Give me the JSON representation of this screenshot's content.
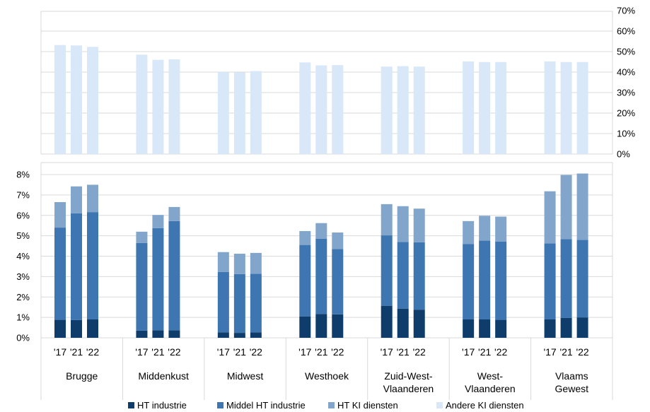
{
  "chart_data": [
    {
      "type": "bar",
      "stacked": false,
      "panel": "top",
      "y_axis_position": "right",
      "ylim": [
        0,
        70
      ],
      "yticks": [
        "0%",
        "10%",
        "20%",
        "30%",
        "40%",
        "50%",
        "60%",
        "70%"
      ],
      "grid": true,
      "regions": [
        "Brugge",
        "Middenkust",
        "Midwest",
        "Westhoek",
        "Zuid-West-Vlaanderen",
        "West-Vlaanderen",
        "Vlaams Gewest"
      ],
      "years": [
        "'17",
        "'21",
        "'22"
      ],
      "series": [
        {
          "name": "Andere KI diensten",
          "color": "#d9e8f8",
          "values": [
            [
              53.2,
              53.0,
              52.3
            ],
            [
              48.5,
              46.0,
              46.2
            ],
            [
              40.0,
              39.8,
              40.5
            ],
            [
              44.7,
              43.3,
              43.4
            ],
            [
              42.7,
              42.9,
              42.7
            ],
            [
              45.2,
              44.9,
              44.9
            ],
            [
              45.2,
              44.9,
              44.9
            ]
          ]
        }
      ]
    },
    {
      "type": "bar",
      "stacked": true,
      "panel": "bottom",
      "y_axis_position": "left",
      "ylim": [
        0,
        8
      ],
      "yticks": [
        "0%",
        "1%",
        "2%",
        "3%",
        "4%",
        "5%",
        "6%",
        "7%",
        "8%"
      ],
      "grid": true,
      "regions": [
        "Brugge",
        "Middenkust",
        "Midwest",
        "Westhoek",
        "Zuid-West-Vlaanderen",
        "West-Vlaanderen",
        "Vlaams Gewest"
      ],
      "years": [
        "'17",
        "'21",
        "'22"
      ],
      "series": [
        {
          "name": "HT industrie",
          "color": "#0e3d6b",
          "values": [
            [
              0.88,
              0.87,
              0.9
            ],
            [
              0.35,
              0.37,
              0.37
            ],
            [
              0.27,
              0.24,
              0.27
            ],
            [
              1.05,
              1.17,
              1.15
            ],
            [
              1.57,
              1.43,
              1.38
            ],
            [
              0.9,
              0.9,
              0.88
            ],
            [
              0.9,
              0.98,
              1.0
            ]
          ]
        },
        {
          "name": "Middel HT industrie",
          "color": "#3e76b2",
          "values": [
            [
              4.52,
              5.23,
              5.26
            ],
            [
              4.3,
              5.0,
              5.35
            ],
            [
              2.96,
              2.88,
              2.87
            ],
            [
              3.5,
              3.68,
              3.2
            ],
            [
              3.45,
              3.27,
              3.3
            ],
            [
              3.7,
              3.86,
              3.84
            ],
            [
              3.73,
              3.85,
              3.8
            ]
          ]
        },
        {
          "name": "HT KI diensten",
          "color": "#82a5cc",
          "values": [
            [
              1.25,
              1.32,
              1.34
            ],
            [
              0.55,
              0.65,
              0.69
            ],
            [
              0.97,
              1.0,
              1.02
            ],
            [
              0.68,
              0.77,
              0.81
            ],
            [
              1.53,
              1.75,
              1.65
            ],
            [
              1.12,
              1.22,
              1.22
            ],
            [
              2.55,
              3.15,
              3.25
            ]
          ]
        }
      ]
    }
  ],
  "category_labels": [
    [
      "Brugge"
    ],
    [
      "Middenkust"
    ],
    [
      "Midwest"
    ],
    [
      "Westhoek"
    ],
    [
      "Zuid-West-",
      "Vlaanderen"
    ],
    [
      "West-",
      "Vlaanderen"
    ],
    [
      "Vlaams",
      "Gewest"
    ]
  ],
  "legend": {
    "position": "bottom",
    "entries": [
      {
        "label": "HT industrie",
        "color": "#0e3d6b"
      },
      {
        "label": "Middel HT industrie",
        "color": "#3e76b2"
      },
      {
        "label": "HT KI diensten",
        "color": "#82a5cc"
      },
      {
        "label": "Andere KI diensten",
        "color": "#d9e8f8"
      }
    ]
  }
}
